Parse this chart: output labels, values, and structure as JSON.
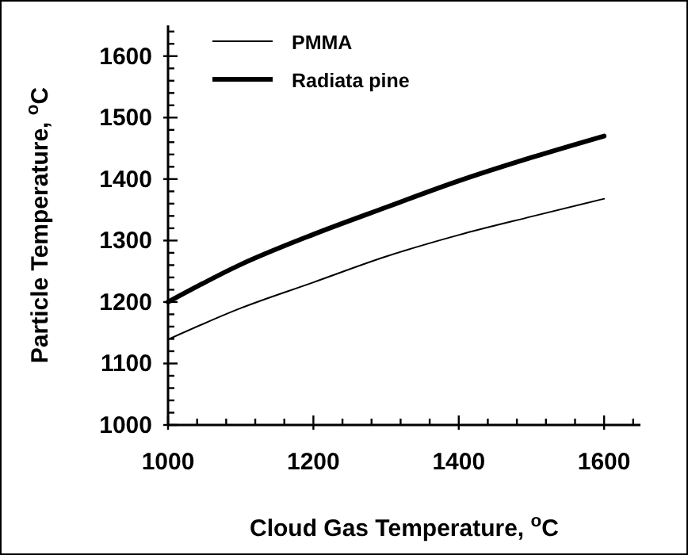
{
  "chart_data": {
    "type": "line",
    "xlabel": "Cloud Gas Temperature, $^{o}$C",
    "ylabel": "Particle Temperature,   $^{o}$C",
    "x": [
      1000,
      1100,
      1200,
      1300,
      1400,
      1500,
      1600
    ],
    "series": [
      {
        "name": "PMMA",
        "color": "#000000",
        "values": [
          1139,
          1190,
          1232,
          1274,
          1309,
          1339,
          1368
        ]
      },
      {
        "name": "Radiata pine",
        "color": "#000000",
        "values": [
          1200,
          1261,
          1310,
          1354,
          1397,
          1435,
          1470
        ]
      }
    ],
    "xlim": [
      1000,
      1650
    ],
    "xticks": [
      1000,
      {
        "value": 1040,
        "label": null
      },
      {
        "value": 1080,
        "label": null
      },
      {
        "value": 1120,
        "label": null
      },
      {
        "value": 1160,
        "label": null
      },
      1200,
      {
        "value": 1240,
        "label": null
      },
      {
        "value": 1280,
        "label": null
      },
      {
        "value": 1320,
        "label": null
      },
      {
        "value": 1360,
        "label": null
      },
      1400,
      {
        "value": 1440,
        "label": null
      },
      {
        "value": 1480,
        "label": null
      },
      {
        "value": 1520,
        "label": null
      },
      {
        "value": 1560,
        "label": null
      },
      1600,
      {
        "value": 1640,
        "label": null
      }
    ],
    "ylim": [
      1000,
      1650
    ],
    "yticks": [
      1000,
      {
        "value": 1020,
        "label": null
      },
      {
        "value": 1040,
        "label": null
      },
      {
        "value": 1060,
        "label": null
      },
      {
        "value": 1080,
        "label": null
      },
      1100,
      {
        "value": 1120,
        "label": null
      },
      {
        "value": 1140,
        "label": null
      },
      {
        "value": 1160,
        "label": null
      },
      {
        "value": 1180,
        "label": null
      },
      1200,
      {
        "value": 1220,
        "label": null
      },
      {
        "value": 1240,
        "label": null
      },
      {
        "value": 1260,
        "label": null
      },
      {
        "value": 1280,
        "label": null
      },
      1300,
      {
        "value": 1320,
        "label": null
      },
      {
        "value": 1340,
        "label": null
      },
      {
        "value": 1360,
        "label": null
      },
      {
        "value": 1380,
        "label": null
      },
      1400,
      {
        "value": 1420,
        "label": null
      },
      {
        "value": 1440,
        "label": null
      },
      {
        "value": 1460,
        "label": null
      },
      {
        "value": 1480,
        "label": null
      },
      1500,
      {
        "value": 1520,
        "label": null
      },
      {
        "value": 1540,
        "label": null
      },
      {
        "value": 1560,
        "label": null
      },
      {
        "value": 1580,
        "label": null
      },
      1600,
      {
        "value": 1620,
        "label": null
      },
      {
        "value": 1640,
        "label": null
      }
    ],
    "legend": "top left",
    "grid": false,
    "marker": "none",
    "line_style": "solid"
  }
}
